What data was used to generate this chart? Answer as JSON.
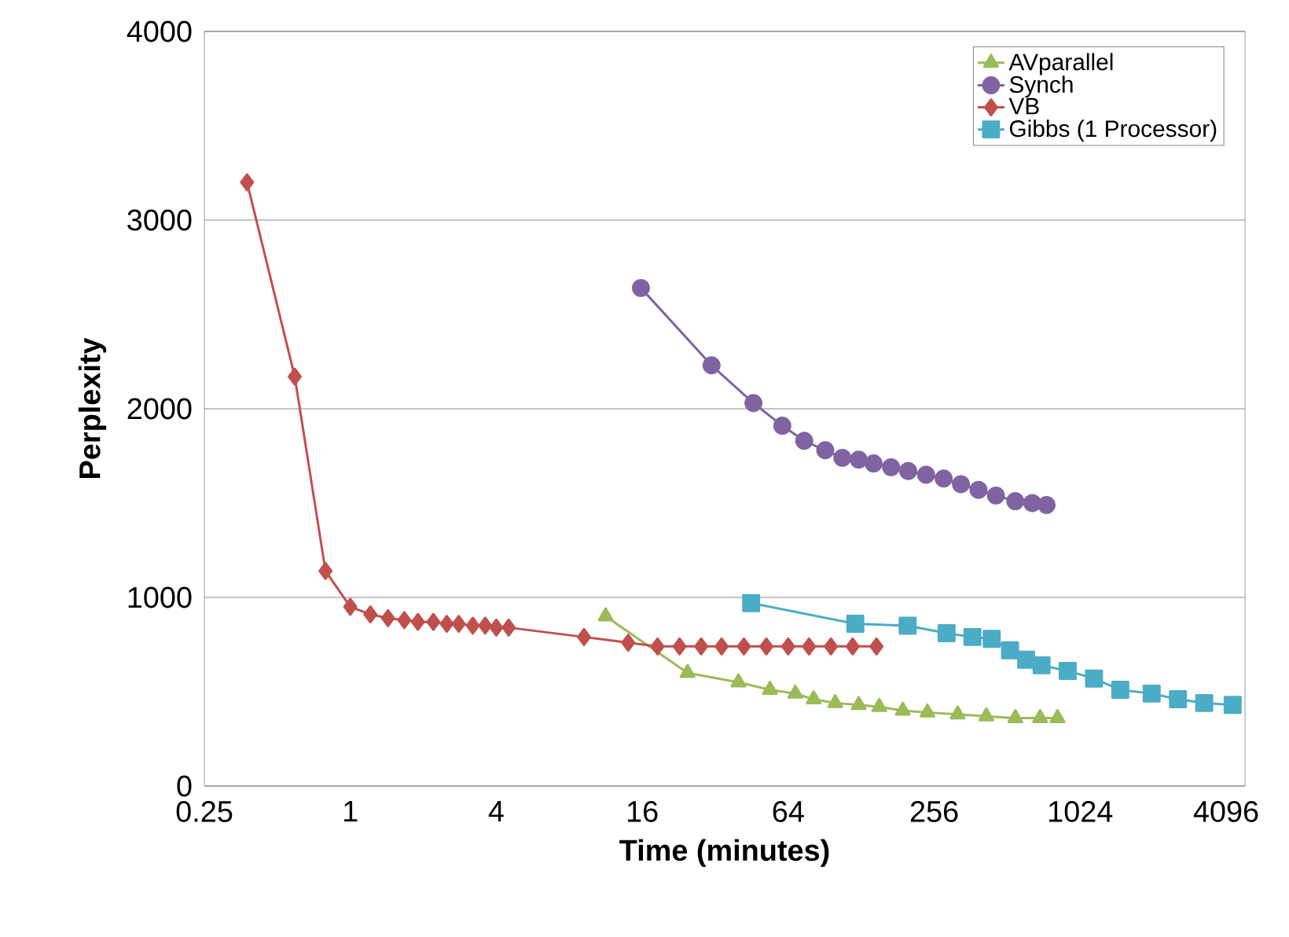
{
  "chart_data": {
    "type": "line",
    "xlabel": "Time (minutes)",
    "ylabel": "Perplexity",
    "log": "x",
    "xlim": [
      0.25,
      4900
    ],
    "ylim": [
      0,
      4000
    ],
    "xticks": [
      0.25,
      1,
      4,
      16,
      64,
      256,
      1024,
      4096
    ],
    "yticks": [
      0,
      1000,
      2000,
      3000,
      4000
    ],
    "grid": "y",
    "legend": "top right",
    "series": [
      {
        "name": "AVparallel",
        "color": "#9bbb59",
        "marker": "triangle",
        "x": [
          11.3,
          24.6,
          39.9,
          53.8,
          68.5,
          81.5,
          100,
          125,
          152,
          190,
          240,
          320,
          420,
          553,
          700,
          826
        ],
        "values": [
          900,
          600,
          550,
          510,
          490,
          460,
          440,
          430,
          420,
          400,
          390,
          380,
          370,
          360,
          360,
          360
        ]
      },
      {
        "name": "Synch",
        "color": "#8064a2",
        "marker": "circle",
        "x": [
          15.8,
          30.9,
          46,
          60.5,
          74.5,
          91,
          107,
          125,
          144,
          170,
          200,
          237,
          280,
          330,
          390,
          460,
          553,
          650,
          744
        ],
        "values": [
          2640,
          2230,
          2030,
          1910,
          1830,
          1780,
          1740,
          1730,
          1710,
          1690,
          1670,
          1650,
          1630,
          1600,
          1570,
          1540,
          1510,
          1500,
          1490
        ]
      },
      {
        "name": "VB",
        "color": "#c0504d",
        "marker": "diamond",
        "x": [
          0.375,
          0.59,
          0.79,
          1,
          1.21,
          1.43,
          1.67,
          1.9,
          2.2,
          2.5,
          2.8,
          3.2,
          3.6,
          4.0,
          4.5,
          9.2,
          14,
          18.5,
          22.8,
          28,
          34,
          42,
          52,
          64,
          78,
          96,
          118,
          148
        ],
        "values": [
          3200,
          2170,
          1140,
          950,
          910,
          890,
          880,
          870,
          870,
          860,
          860,
          850,
          850,
          840,
          840,
          790,
          760,
          740,
          740,
          740,
          740,
          740,
          740,
          740,
          740,
          740,
          740,
          740
        ]
      },
      {
        "name": "Gibbs (1 Processor)",
        "color": "#4bacc6",
        "marker": "square",
        "x": [
          45,
          121,
          199,
          288,
          368,
          442,
          526,
          613,
          710,
          910,
          1168,
          1499,
          2020,
          2592,
          3326,
          4359
        ],
        "values": [
          970,
          860,
          850,
          810,
          790,
          780,
          720,
          670,
          640,
          610,
          570,
          510,
          490,
          460,
          440,
          430
        ]
      }
    ]
  }
}
